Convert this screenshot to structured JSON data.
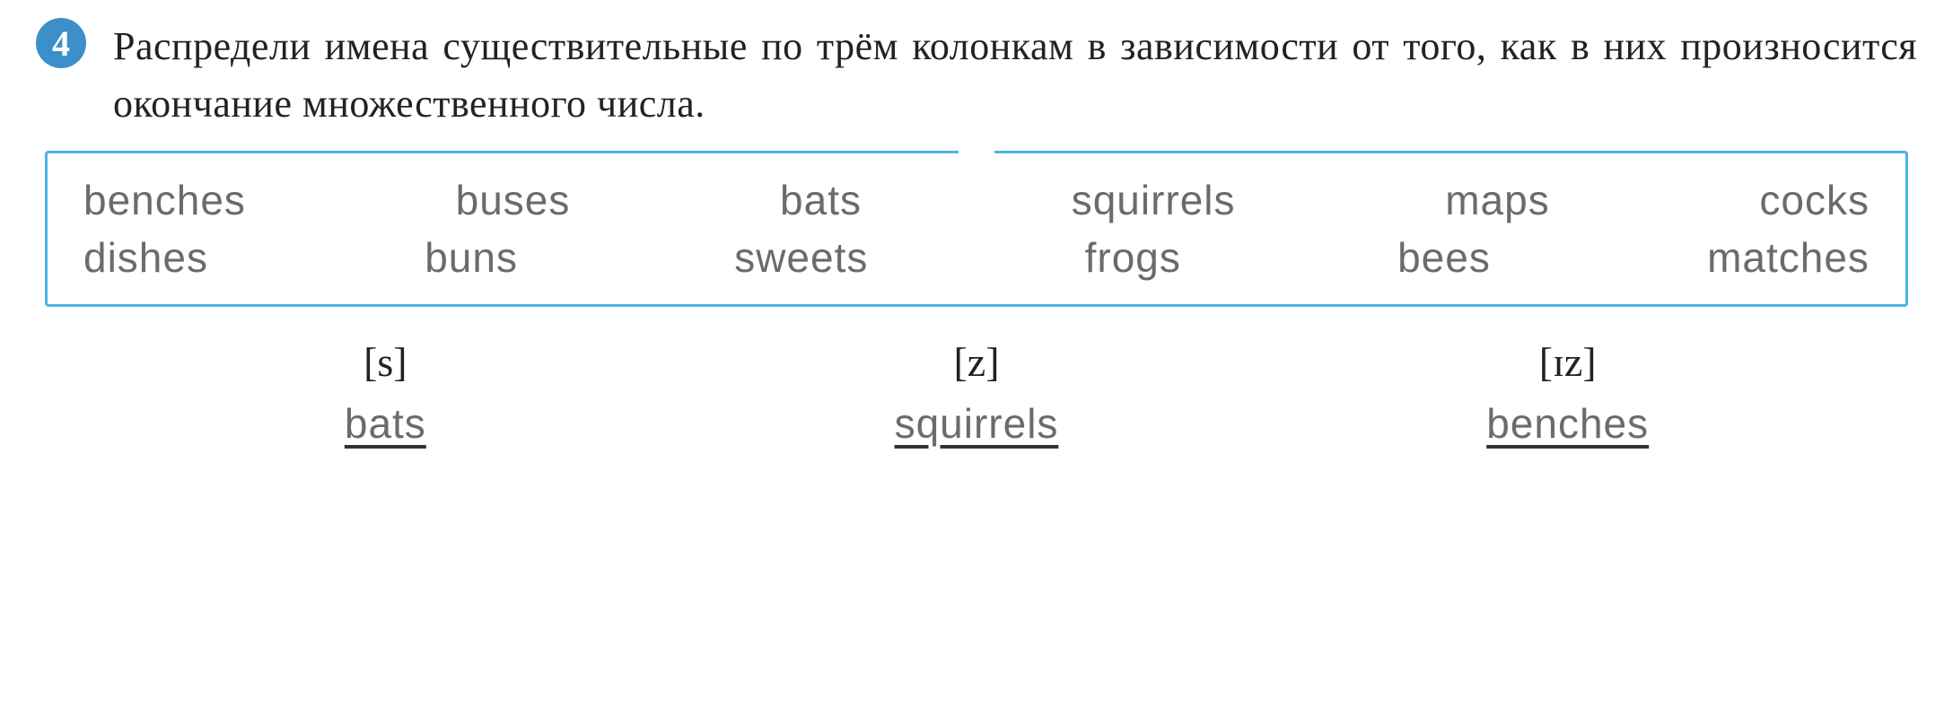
{
  "exercise": {
    "number": "4",
    "instruction": "Распредели имена существительные по трём колонкам в зависимости от того, как в них произносится окончание множественного числа."
  },
  "word_box": {
    "border_color": "#4db3e6",
    "row1": [
      "benches",
      "buses",
      "bats",
      "squirrels",
      "maps",
      "cocks"
    ],
    "row2": [
      "dishes",
      "buns",
      "sweets",
      "frogs",
      "bees",
      "matches"
    ]
  },
  "columns": {
    "col1": {
      "header": "[s]",
      "example": "bats"
    },
    "col2": {
      "header": "[z]",
      "example": "squirrels"
    },
    "col3": {
      "header": "[ɪz]",
      "example": "benches"
    }
  },
  "styling": {
    "badge_bg": "#3d8fc9",
    "badge_text_color": "#ffffff",
    "instruction_color": "#222222",
    "word_color": "#6b6b6b",
    "instruction_fontsize": 44,
    "word_fontsize": 46,
    "background_color": "#ffffff"
  }
}
